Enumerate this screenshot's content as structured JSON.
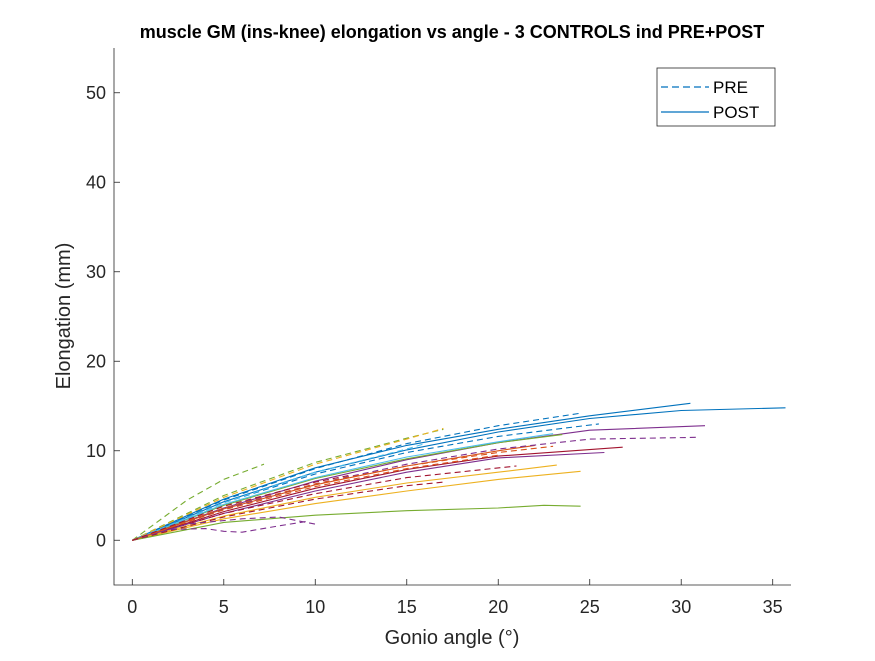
{
  "chart_data": {
    "type": "line",
    "title": "muscle GM (ins-knee) elongation vs angle - 3 CONTROLS ind PRE+POST",
    "xlabel": "Gonio angle (°)",
    "ylabel": "Elongation (mm)",
    "xlim": [
      -1,
      36
    ],
    "ylim": [
      -5,
      55
    ],
    "xticks": [
      0,
      5,
      10,
      15,
      20,
      25,
      30,
      35
    ],
    "yticks": [
      0,
      10,
      20,
      30,
      40,
      50
    ],
    "grid": false,
    "legend": {
      "placement": "top-right",
      "entries": [
        {
          "label": "PRE",
          "style": "dashed",
          "color": "#0072BD"
        },
        {
          "label": "POST",
          "style": "solid",
          "color": "#0072BD"
        }
      ]
    },
    "series": [
      {
        "style": "solid",
        "color": "#0072BD",
        "x": [
          0,
          5,
          10,
          15,
          20,
          25,
          30,
          35.7
        ],
        "y": [
          0,
          4.3,
          7.6,
          10.1,
          12.1,
          13.6,
          14.5,
          14.8
        ]
      },
      {
        "style": "solid",
        "color": "#0072BD",
        "x": [
          0,
          5,
          10,
          15,
          20,
          25,
          30.5
        ],
        "y": [
          0,
          4.6,
          8.1,
          10.6,
          12.4,
          13.9,
          15.3
        ]
      },
      {
        "style": "solid",
        "color": "#7E2F8E",
        "x": [
          0,
          5,
          10,
          15,
          20,
          25,
          31.3
        ],
        "y": [
          0,
          3.6,
          6.6,
          9.0,
          10.9,
          12.3,
          12.8
        ]
      },
      {
        "style": "solid",
        "color": "#A2142F",
        "x": [
          0,
          5,
          10,
          15,
          20,
          26.8
        ],
        "y": [
          0,
          3.2,
          5.8,
          7.9,
          9.4,
          10.4
        ]
      },
      {
        "style": "solid",
        "color": "#7E2F8E",
        "x": [
          0,
          5,
          10,
          15,
          20,
          25.8
        ],
        "y": [
          0,
          3.0,
          5.5,
          7.6,
          9.2,
          9.8
        ]
      },
      {
        "style": "solid",
        "color": "#EDB120",
        "x": [
          0,
          5,
          10,
          15,
          20,
          24.5
        ],
        "y": [
          0,
          2.4,
          4.1,
          5.5,
          6.8,
          7.7
        ]
      },
      {
        "style": "solid",
        "color": "#EDB120",
        "x": [
          0,
          5,
          10,
          15,
          20,
          23.2
        ],
        "y": [
          0,
          2.7,
          4.8,
          6.4,
          7.6,
          8.4
        ]
      },
      {
        "style": "solid",
        "color": "#77AC30",
        "x": [
          0,
          5,
          10,
          15,
          20,
          22.5,
          24.5
        ],
        "y": [
          0,
          2.0,
          2.8,
          3.3,
          3.6,
          3.9,
          3.8
        ]
      },
      {
        "style": "solid",
        "color": "#77AC30",
        "x": [
          0,
          5,
          10,
          15,
          20,
          23.5
        ],
        "y": [
          0,
          3.9,
          6.9,
          9.1,
          10.9,
          11.8
        ]
      },
      {
        "style": "solid",
        "color": "#4DBEEE",
        "x": [
          0,
          5,
          10,
          15,
          20,
          23.0
        ],
        "y": [
          0,
          4.0,
          7.0,
          9.3,
          11.0,
          11.9
        ]
      },
      {
        "style": "solid",
        "color": "#D95319",
        "x": [
          0,
          5,
          10,
          15,
          20,
          22.0
        ],
        "y": [
          0,
          3.5,
          6.2,
          8.3,
          10.0,
          10.6
        ]
      },
      {
        "style": "dashed",
        "color": "#0072BD",
        "x": [
          0,
          5,
          10,
          15,
          20,
          24.5
        ],
        "y": [
          0,
          4.5,
          8.0,
          10.8,
          12.8,
          14.2
        ]
      },
      {
        "style": "dashed",
        "color": "#0072BD",
        "x": [
          0,
          5,
          10,
          15,
          20,
          25.5
        ],
        "y": [
          0,
          4.2,
          7.4,
          9.8,
          11.6,
          13.0
        ]
      },
      {
        "style": "dashed",
        "color": "#7E2F8E",
        "x": [
          0,
          5,
          10,
          15,
          20,
          25,
          31.0
        ],
        "y": [
          0,
          3.5,
          6.3,
          8.5,
          10.2,
          11.3,
          11.5
        ]
      },
      {
        "style": "dashed",
        "color": "#D95319",
        "x": [
          0,
          5,
          10,
          15,
          20,
          23.0
        ],
        "y": [
          0,
          3.6,
          6.3,
          8.3,
          9.8,
          10.5
        ]
      },
      {
        "style": "dashed",
        "color": "#A2142F",
        "x": [
          0,
          5,
          10,
          15,
          21.0
        ],
        "y": [
          0,
          3.0,
          5.2,
          7.0,
          8.3
        ]
      },
      {
        "style": "dashed",
        "color": "#A2142F",
        "x": [
          0,
          5,
          10,
          15,
          17.0
        ],
        "y": [
          0,
          2.6,
          4.6,
          6.1,
          6.5
        ]
      },
      {
        "style": "dashed",
        "color": "#7E2F8E",
        "x": [
          0,
          2,
          4,
          5,
          6,
          8,
          9.5
        ],
        "y": [
          0,
          1.2,
          1.3,
          1.0,
          0.9,
          1.6,
          2.1
        ]
      },
      {
        "style": "dashed",
        "color": "#7E2F8E",
        "x": [
          0,
          3,
          6,
          8,
          9,
          10.0
        ],
        "y": [
          0,
          1.8,
          2.4,
          2.6,
          2.2,
          1.8
        ]
      },
      {
        "style": "dashed",
        "color": "#77AC30",
        "x": [
          0,
          3,
          5,
          7.2
        ],
        "y": [
          0,
          4.5,
          6.8,
          8.5
        ]
      },
      {
        "style": "dashed",
        "color": "#77AC30",
        "x": [
          0,
          5,
          10,
          15,
          17.0
        ],
        "y": [
          0,
          5.0,
          8.7,
          11.4,
          12.4
        ]
      },
      {
        "style": "dashed",
        "color": "#EDB120",
        "x": [
          0,
          5,
          10,
          15,
          17.0
        ],
        "y": [
          0,
          4.8,
          8.5,
          11.3,
          12.5
        ]
      },
      {
        "style": "dashed",
        "color": "#4DBEEE",
        "x": [
          0,
          5,
          10,
          15,
          16.0
        ],
        "y": [
          0,
          4.2,
          7.6,
          10.2,
          10.8
        ]
      },
      {
        "style": "dashed",
        "color": "#D95319",
        "x": [
          0,
          5,
          10,
          15,
          20.0
        ],
        "y": [
          0,
          3.4,
          6.0,
          8.0,
          9.5
        ]
      },
      {
        "style": "dashed",
        "color": "#A2142F",
        "x": [
          0,
          5,
          10,
          12.0
        ],
        "y": [
          0,
          3.8,
          6.5,
          7.3
        ]
      }
    ]
  }
}
